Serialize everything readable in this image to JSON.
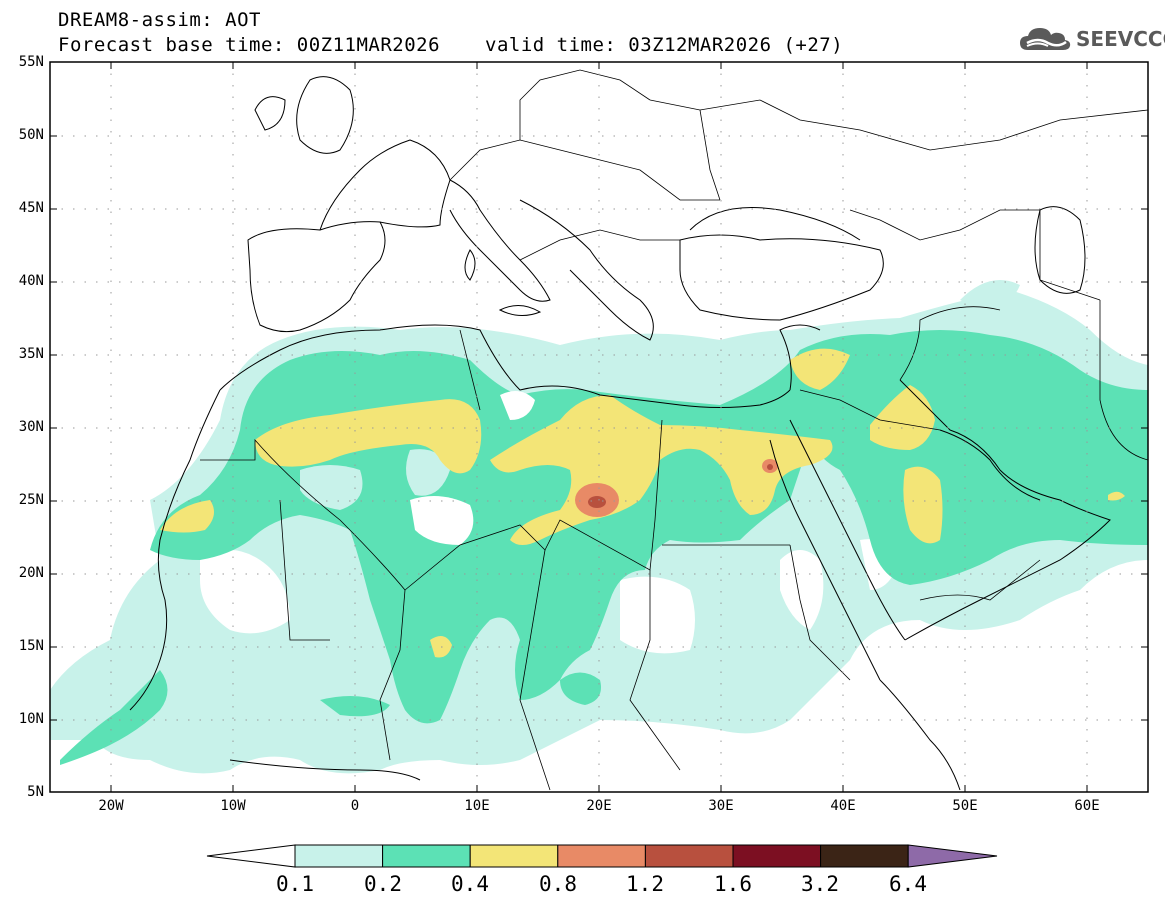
{
  "header": {
    "title_line1": "DREAM8-assim: AOT",
    "title_line2": "Forecast base time: 00Z11MAR2026",
    "valid_text": "valid time: 03Z12MAR2026 (+27)",
    "logo_text": "SEEVCCC",
    "logo_icon": "cloud-icon"
  },
  "axes": {
    "lat_labels": [
      "55N",
      "50N",
      "45N",
      "40N",
      "35N",
      "30N",
      "25N",
      "20N",
      "15N",
      "10N",
      "5N"
    ],
    "lon_labels": [
      "20W",
      "10W",
      "0",
      "10E",
      "20E",
      "30E",
      "40E",
      "50E",
      "60E"
    ],
    "lon_range": [
      -25,
      65
    ],
    "lat_range": [
      5,
      55
    ],
    "grid": "dotted"
  },
  "colorbar": {
    "levels": [
      "0.1",
      "0.2",
      "0.4",
      "0.8",
      "1.2",
      "1.6",
      "3.2",
      "6.4"
    ],
    "colors": [
      "#c8f2ea",
      "#5ce1b5",
      "#f3e577",
      "#e88a66",
      "#b8503e",
      "#7c0f22",
      "#3b2416",
      "#8e6aa8"
    ],
    "under_color": "#ffffff"
  }
}
